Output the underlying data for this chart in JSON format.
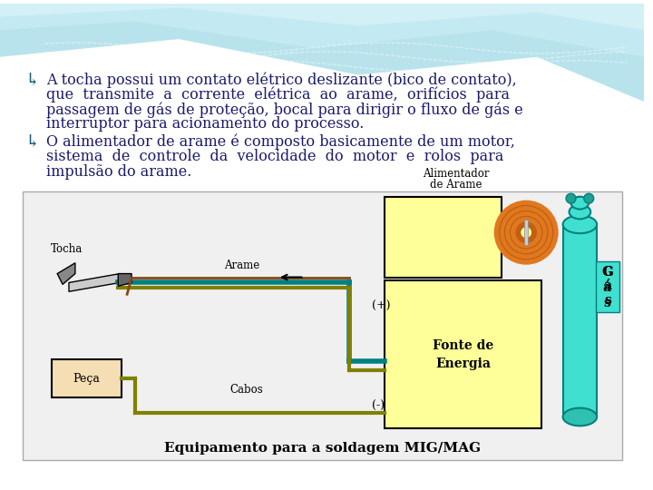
{
  "bullet1_line1": "A tocha possui um contato elétrico deslizante (bico de contato),",
  "bullet1_line2": "que  transmite  a  corrente  elétrica  ao  arame,  orifícios  para",
  "bullet1_line3": "passagem de gás de proteção, bocal para dirigir o fluxo de gás e",
  "bullet1_line4": "interruptor para acionamento do processo.",
  "bullet2_line1": "O alimentador de arame é composto basicamente de um motor,",
  "bullet2_line2": "sistema  de  controle  da  velocidade  do  motor  e  rolos  para",
  "bullet2_line3": "impulsão do arame.",
  "caption": "Equipamento para a soldagem MIG/MAG",
  "text_color": "#1a1a6e",
  "bullet_color": "#1a5f7a",
  "wave1_color": "#a8dde8",
  "wave2_color": "#c8eef5",
  "wave3_color": "#dff5fa",
  "fonte_color": "#ffff99",
  "gas_color": "#40e0d0",
  "peca_color": "#f5deb3",
  "spool_color": "#e07820",
  "cable_teal": "#008080",
  "cable_olive": "#808000",
  "cable_brown": "#8B4513"
}
